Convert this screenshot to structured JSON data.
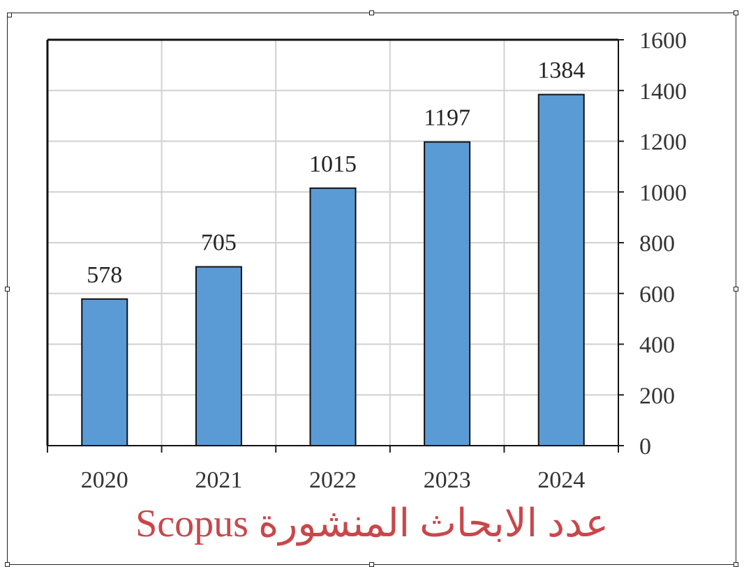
{
  "chart_data": {
    "type": "bar",
    "title": "عدد الابحاث المنشورة Scopus",
    "categories": [
      "2020",
      "2021",
      "2022",
      "2023",
      "2024"
    ],
    "values": [
      578,
      705,
      1015,
      1197,
      1384
    ],
    "ylim": [
      0,
      1600
    ],
    "yticks": [
      0,
      200,
      400,
      600,
      800,
      1000,
      1200,
      1400,
      1600
    ],
    "y_axis_position": "right",
    "grid": true,
    "legend": "none",
    "bar_color": "#5b9bd5",
    "title_color": "#c9474a"
  }
}
